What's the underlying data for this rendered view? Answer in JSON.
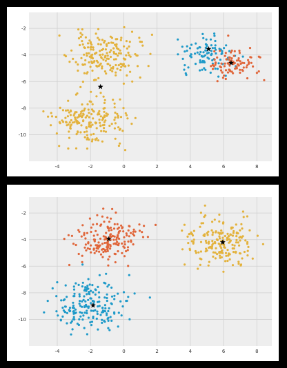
{
  "colors": {
    "blue": "#1f9ac9",
    "orange": "#e0663a",
    "gold": "#e3b23c",
    "centroid": "#000000",
    "plot_bg": "#eeeeee",
    "grid": "#d0d0d0"
  },
  "chart_data": [
    {
      "type": "scatter",
      "title": "",
      "xlabel": "",
      "ylabel": "",
      "xlim": [
        -5.7,
        8.9
      ],
      "ylim": [
        -12.0,
        -0.8
      ],
      "xticks": [
        "-4",
        "-2",
        "0",
        "2",
        "4",
        "6",
        "8"
      ],
      "yticks": [
        "-2",
        "-4",
        "-6",
        "-8",
        "-10"
      ],
      "grid": true,
      "legend": "none",
      "clusters": [
        {
          "color": "gold",
          "center": [
            -1.2,
            -4.0
          ],
          "spread": [
            1.0,
            0.85
          ],
          "n": 180
        },
        {
          "color": "gold",
          "center": [
            -2.1,
            -9.0
          ],
          "spread": [
            1.1,
            1.0
          ],
          "n": 190
        },
        {
          "color": "blue",
          "center": [
            5.0,
            -3.8
          ],
          "spread": [
            0.85,
            0.7
          ],
          "n": 95
        },
        {
          "color": "orange",
          "center": [
            6.6,
            -4.6
          ],
          "spread": [
            0.8,
            0.65
          ],
          "n": 90
        }
      ],
      "centroids": [
        [
          5.1,
          -3.55
        ],
        [
          6.45,
          -4.6
        ],
        [
          -1.4,
          -6.4
        ]
      ]
    },
    {
      "type": "scatter",
      "title": "",
      "xlabel": "",
      "ylabel": "",
      "xlim": [
        -5.7,
        8.9
      ],
      "ylim": [
        -12.0,
        -0.8
      ],
      "xticks": [
        "-4",
        "-2",
        "0",
        "2",
        "4",
        "6",
        "8"
      ],
      "yticks": [
        "-2",
        "-4",
        "-6",
        "-8",
        "-10"
      ],
      "grid": true,
      "legend": "none",
      "clusters": [
        {
          "color": "orange",
          "center": [
            -1.0,
            -4.0
          ],
          "spread": [
            1.0,
            0.85
          ],
          "n": 180
        },
        {
          "color": "blue",
          "center": [
            -2.0,
            -9.0
          ],
          "spread": [
            1.1,
            1.0
          ],
          "n": 190
        },
        {
          "color": "gold",
          "center": [
            6.0,
            -4.2
          ],
          "spread": [
            1.05,
            0.9
          ],
          "n": 190
        }
      ],
      "centroids": [
        [
          -0.9,
          -3.95
        ],
        [
          -1.85,
          -8.95
        ],
        [
          5.95,
          -4.2
        ]
      ]
    }
  ]
}
